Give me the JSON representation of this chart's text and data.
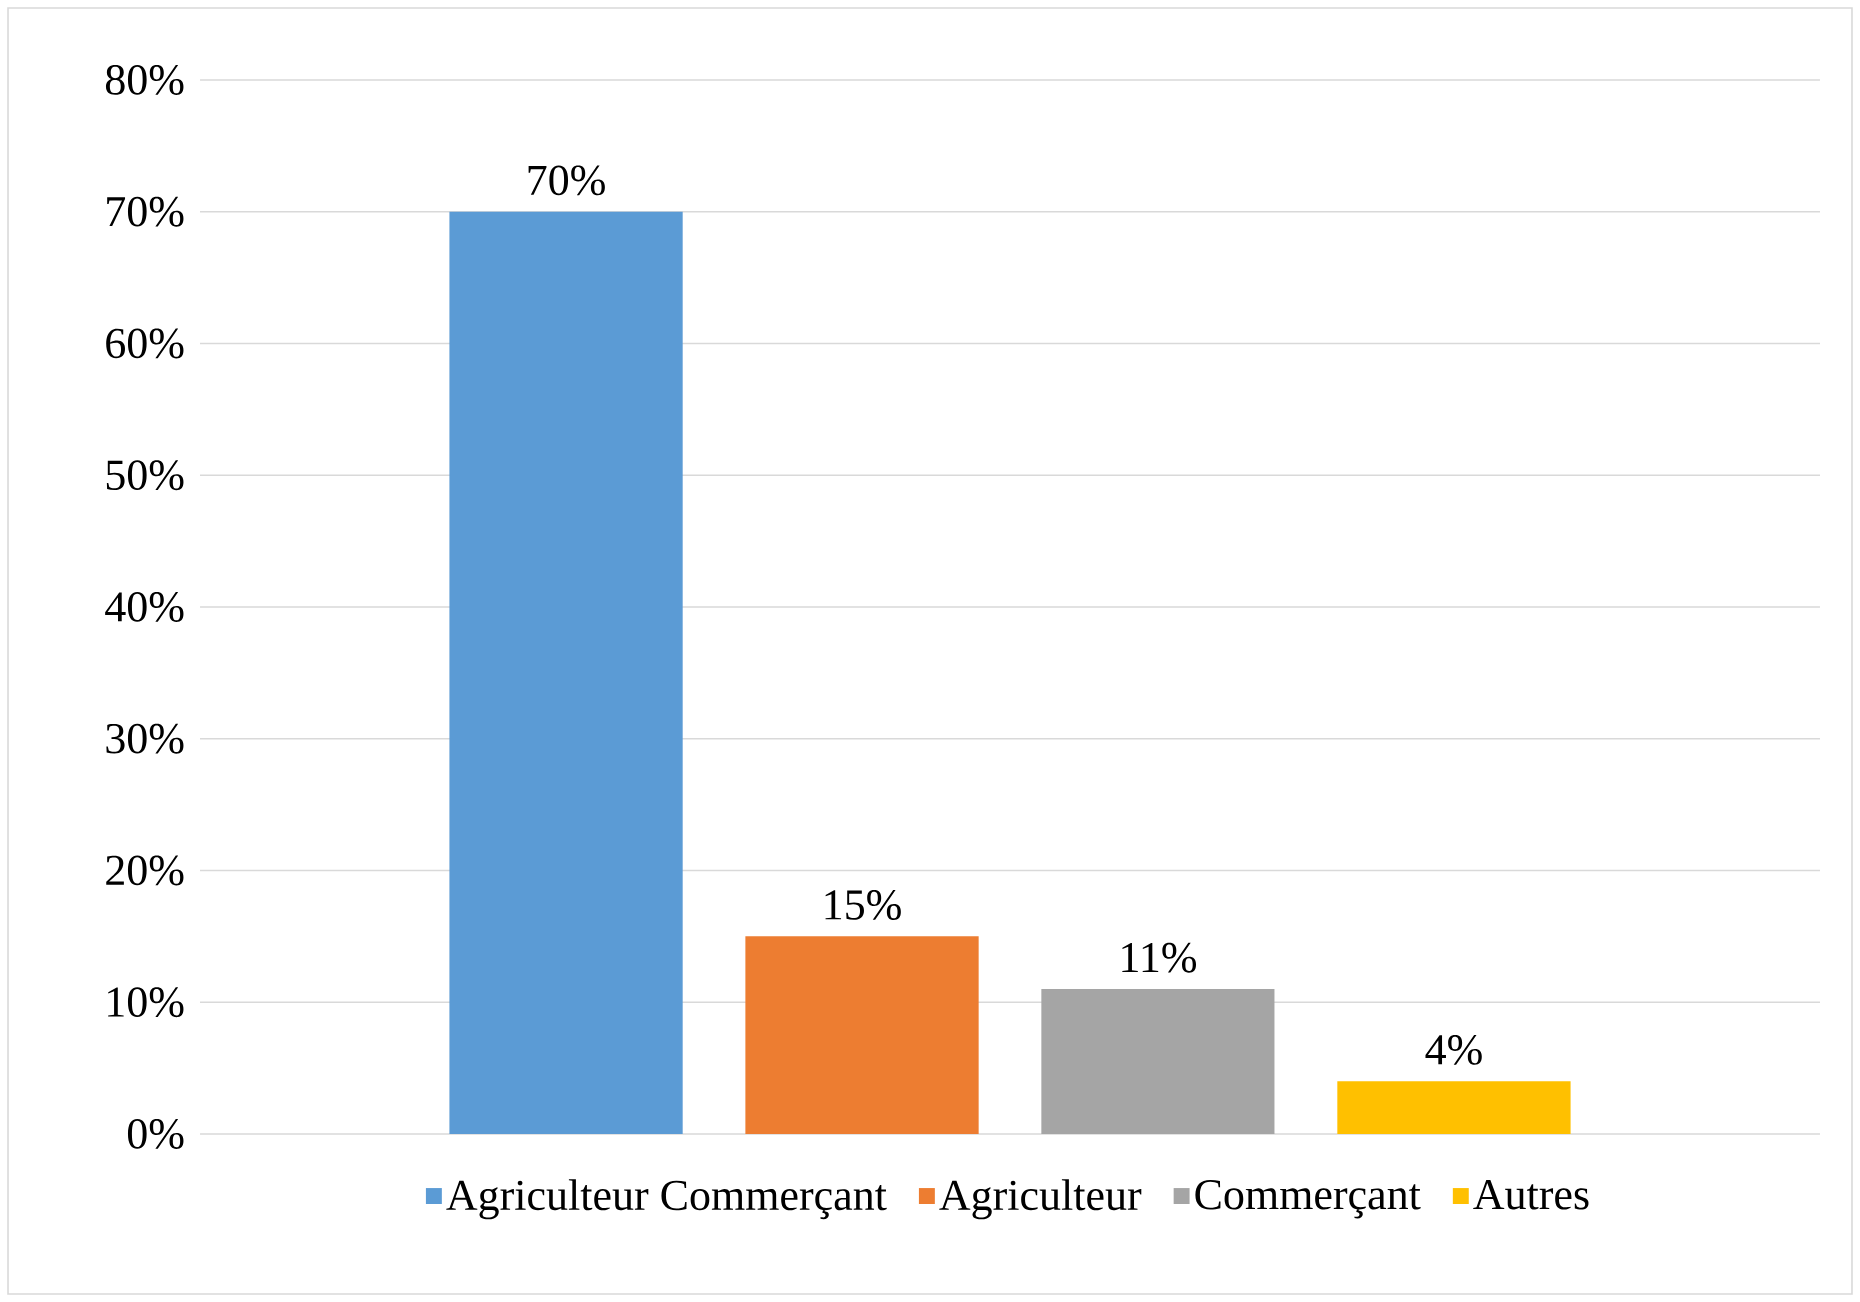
{
  "chart_data": {
    "type": "bar",
    "categories": [
      null
    ],
    "series": [
      {
        "name": "Agriculteur Commerçant",
        "color": "#5b9bd5",
        "values": [
          70
        ],
        "value_labels": [
          "70%"
        ]
      },
      {
        "name": "Agriculteur",
        "color": "#ed7d31",
        "values": [
          15
        ],
        "value_labels": [
          "15%"
        ]
      },
      {
        "name": "Commerçant",
        "color": "#a5a5a5",
        "values": [
          11
        ],
        "value_labels": [
          "11%"
        ]
      },
      {
        "name": "Autres",
        "color": "#ffc000",
        "values": [
          4
        ],
        "value_labels": [
          "4%"
        ]
      }
    ],
    "ylim": [
      0,
      80
    ],
    "yticks": [
      {
        "value": 0,
        "label": "0%"
      },
      {
        "value": 10,
        "label": "10%"
      },
      {
        "value": 20,
        "label": "20%"
      },
      {
        "value": 30,
        "label": "30%"
      },
      {
        "value": 40,
        "label": "40%"
      },
      {
        "value": 50,
        "label": "50%"
      },
      {
        "value": 60,
        "label": "60%"
      },
      {
        "value": 70,
        "label": "70%"
      },
      {
        "value": 80,
        "label": "80%"
      }
    ],
    "grid": "y",
    "legend": "bottom"
  }
}
